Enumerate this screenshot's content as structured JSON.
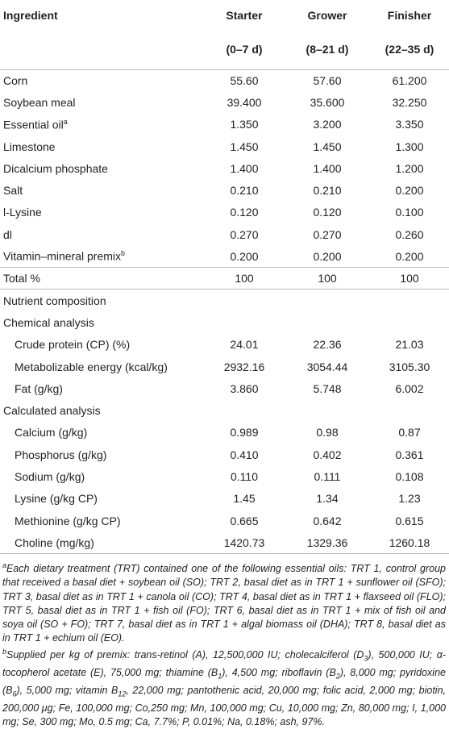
{
  "table": {
    "header": {
      "columns": [
        "Ingredient",
        "Starter",
        "Grower",
        "Finisher"
      ],
      "periods": [
        "(0–7 d)",
        "(8–21 d)",
        "(22–35 d)"
      ]
    },
    "ingredients": [
      {
        "label": "Corn",
        "values": [
          "55.60",
          "57.60",
          "61.200"
        ]
      },
      {
        "label": "Soybean meal",
        "values": [
          "39.400",
          "35.600",
          "32.250"
        ]
      },
      {
        "label": "Essential oil",
        "note": "a",
        "values": [
          "1.350",
          "3.200",
          "3.350"
        ]
      },
      {
        "label": "Limestone",
        "values": [
          "1.450",
          "1.450",
          "1.300"
        ]
      },
      {
        "label": "Dicalcium phosphate",
        "values": [
          "1.400",
          "1.400",
          "1.200"
        ]
      },
      {
        "label": "Salt",
        "values": [
          "0.210",
          "0.210",
          "0.200"
        ]
      },
      {
        "label": "l-Lysine",
        "values": [
          "0.120",
          "0.120",
          "0.100"
        ]
      },
      {
        "label": "dl",
        "values": [
          "0.270",
          "0.270",
          "0.260"
        ]
      },
      {
        "label": "Vitamin–mineral premix",
        "note": "b",
        "values": [
          "0.200",
          "0.200",
          "0.200"
        ]
      }
    ],
    "total": {
      "label": "Total %",
      "values": [
        "100",
        "100",
        "100"
      ]
    },
    "nutrient_composition": {
      "title": "Nutrient composition",
      "groups": [
        {
          "title": "Chemical analysis",
          "rows": [
            {
              "label": "Crude protein (CP) (%)",
              "values": [
                "24.01",
                "22.36",
                "21.03"
              ]
            },
            {
              "label": "Metabolizable energy (kcal/kg)",
              "values": [
                "2932.16",
                "3054.44",
                "3105.30"
              ]
            },
            {
              "label": "Fat (g/kg)",
              "values": [
                "3.860",
                "5.748",
                "6.002"
              ]
            }
          ]
        },
        {
          "title": "Calculated analysis",
          "rows": [
            {
              "label": "Calcium (g/kg)",
              "values": [
                "0.989",
                "0.98",
                "0.87"
              ]
            },
            {
              "label": "Phosphorus (g/kg)",
              "values": [
                "0.410",
                "0.402",
                "0.361"
              ]
            },
            {
              "label": "Sodium (g/kg)",
              "values": [
                "0.110",
                "0.111",
                "0.108"
              ]
            },
            {
              "label": "Lysine (g/kg CP)",
              "values": [
                "1.45",
                "1.34",
                "1.23"
              ]
            },
            {
              "label": "Methionine (g/kg CP)",
              "values": [
                "0.665",
                "0.642",
                "0.615"
              ]
            },
            {
              "label": "Choline (mg/kg)",
              "values": [
                "1420.73",
                "1329.36",
                "1260.18"
              ]
            }
          ]
        }
      ]
    }
  },
  "footnotes": [
    {
      "marker": "a",
      "parts": [
        {
          "text": "Each dietary treatment (TRT) contained one of the following essential oils: TRT 1, control group that received a basal diet + soybean oil (SO); TRT 2, basal diet as in TRT 1 + sunflower oil (SFO); TRT 3, basal diet as in TRT 1 + canola oil (CO); TRT 4, basal diet as in TRT 1 + flaxseed oil (FLO); TRT 5, basal diet as in TRT 1 + fish oil (FO); TRT 6, basal diet as in TRT 1 + mix of fish oil and soya oil (SO + FO); TRT 7, basal diet as in TRT 1 + algal biomass oil (DHA); TRT 8, basal diet as in TRT 1 + echium oil (EO)."
        }
      ]
    },
    {
      "marker": "b",
      "parts": [
        {
          "text": "Supplied per kg of premix: trans-retinol (A), 12,500,000 IU; cholecalciferol (D"
        },
        {
          "sub": "3"
        },
        {
          "text": "), 500,000 IU; α-tocopherol acetate (E), 75,000 mg; thiamine (B"
        },
        {
          "sub": "1"
        },
        {
          "text": "), 4,500 mg; riboflavin (B"
        },
        {
          "sub": "2"
        },
        {
          "text": "), 8,000 mg; pyridoxine (B"
        },
        {
          "sub": "6"
        },
        {
          "text": "), 5,000 mg; vitamin B"
        },
        {
          "sub": "12"
        },
        {
          "text": ", 22,000 mg; pantothenic acid, 20,000 mg; folic acid, 2,000 mg; biotin, 200,000 μg; Fe, 100,000 mg; Co,250 mg; Mn, 100,000 mg; Cu, 10,000 mg; Zn, 80,000 mg; I, 1,000 mg; Se, 300 mg; Mo, 0.5 mg; Ca, 7.7%; P, 0.01%; Na, 0.18%; ash, 97%."
        }
      ]
    }
  ]
}
